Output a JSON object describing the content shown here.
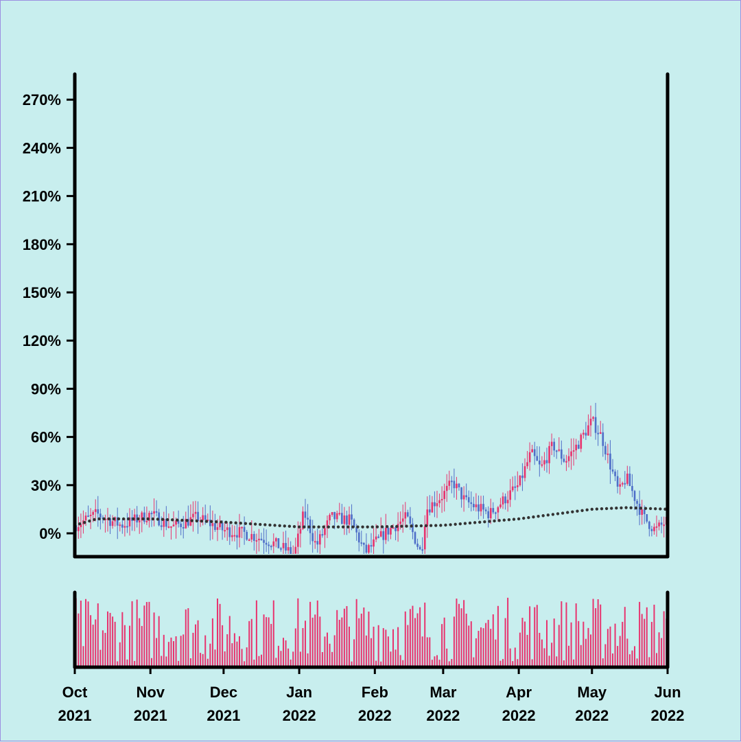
{
  "chart_data": {
    "type": "candlestick",
    "title": "",
    "xlabel": "",
    "ylabel": "",
    "x_range": [
      "2021-10-01",
      "2022-06-01"
    ],
    "ylim": [
      -15,
      285
    ],
    "y_ticks": [
      "0%",
      "30%",
      "60%",
      "90%",
      "120%",
      "150%",
      "180%",
      "210%",
      "240%",
      "270%"
    ],
    "y_tick_values": [
      0,
      30,
      60,
      90,
      120,
      150,
      180,
      210,
      240,
      270
    ],
    "x_ticks": [
      {
        "month": "Oct",
        "year": "2021",
        "date": "2021-10-01"
      },
      {
        "month": "Nov",
        "year": "2021",
        "date": "2021-11-01"
      },
      {
        "month": "Dec",
        "year": "2021",
        "date": "2021-12-01"
      },
      {
        "month": "Jan",
        "year": "2022",
        "date": "2022-01-01"
      },
      {
        "month": "Feb",
        "year": "2022",
        "date": "2022-02-01"
      },
      {
        "month": "Mar",
        "year": "2022",
        "date": "2022-03-01"
      },
      {
        "month": "Apr",
        "year": "2022",
        "date": "2022-04-01"
      },
      {
        "month": "May",
        "year": "2022",
        "date": "2022-05-01"
      },
      {
        "month": "Jun",
        "year": "2022",
        "date": "2022-06-01"
      }
    ],
    "up_color": "#e8336e",
    "down_color": "#4f6fc8",
    "volume_color": "#e8336e",
    "trend_color": "#333333",
    "price_anchors": [
      {
        "date": "2021-10-01",
        "value": 5
      },
      {
        "date": "2021-10-10",
        "value": 12
      },
      {
        "date": "2021-10-20",
        "value": 5
      },
      {
        "date": "2021-11-01",
        "value": 12
      },
      {
        "date": "2021-11-10",
        "value": 4
      },
      {
        "date": "2021-11-20",
        "value": 10
      },
      {
        "date": "2021-12-01",
        "value": 2
      },
      {
        "date": "2021-12-10",
        "value": 0
      },
      {
        "date": "2021-12-20",
        "value": -5
      },
      {
        "date": "2021-12-30",
        "value": -13
      },
      {
        "date": "2022-01-03",
        "value": 13
      },
      {
        "date": "2022-01-08",
        "value": -8
      },
      {
        "date": "2022-01-14",
        "value": 10
      },
      {
        "date": "2022-01-22",
        "value": 8
      },
      {
        "date": "2022-01-28",
        "value": -12
      },
      {
        "date": "2022-02-05",
        "value": 0
      },
      {
        "date": "2022-02-14",
        "value": 10
      },
      {
        "date": "2022-02-20",
        "value": -13
      },
      {
        "date": "2022-02-22",
        "value": 15
      },
      {
        "date": "2022-03-01",
        "value": 24
      },
      {
        "date": "2022-03-05",
        "value": 32
      },
      {
        "date": "2022-03-10",
        "value": 20
      },
      {
        "date": "2022-03-20",
        "value": 12
      },
      {
        "date": "2022-04-01",
        "value": 30
      },
      {
        "date": "2022-04-06",
        "value": 50
      },
      {
        "date": "2022-04-10",
        "value": 40
      },
      {
        "date": "2022-04-15",
        "value": 55
      },
      {
        "date": "2022-04-20",
        "value": 45
      },
      {
        "date": "2022-04-25",
        "value": 55
      },
      {
        "date": "2022-05-01",
        "value": 70
      },
      {
        "date": "2022-05-05",
        "value": 60
      },
      {
        "date": "2022-05-12",
        "value": 25
      },
      {
        "date": "2022-05-15",
        "value": 35
      },
      {
        "date": "2022-05-22",
        "value": 10
      },
      {
        "date": "2022-05-27",
        "value": 2
      },
      {
        "date": "2022-06-01",
        "value": 8
      }
    ],
    "trend_anchors": [
      {
        "date": "2021-10-01",
        "value": 5
      },
      {
        "date": "2021-10-10",
        "value": 9
      },
      {
        "date": "2021-11-01",
        "value": 9
      },
      {
        "date": "2021-12-01",
        "value": 7
      },
      {
        "date": "2022-01-01",
        "value": 4
      },
      {
        "date": "2022-02-01",
        "value": 4
      },
      {
        "date": "2022-03-01",
        "value": 5
      },
      {
        "date": "2022-04-01",
        "value": 9
      },
      {
        "date": "2022-05-01",
        "value": 15
      },
      {
        "date": "2022-05-15",
        "value": 16
      },
      {
        "date": "2022-06-01",
        "value": 15
      }
    ]
  }
}
